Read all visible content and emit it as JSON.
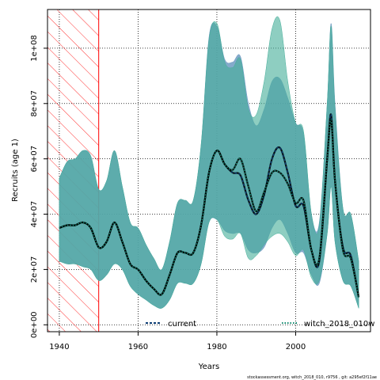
{
  "chart_data": {
    "type": "area",
    "xlabel": "Years",
    "ylabel": "Recruits (age 1)",
    "xlim": [
      1937,
      2019
    ],
    "ylim": [
      -2500000,
      114000000
    ],
    "xticks": [
      1940,
      1960,
      1980,
      2000
    ],
    "xtick_labels": [
      "1940",
      "1960",
      "1980",
      "2000"
    ],
    "yticks": [
      0,
      20000000,
      40000000,
      60000000,
      80000000,
      100000000
    ],
    "ytick_labels": [
      "0e+00",
      "2e+07",
      "4e+07",
      "6e+07",
      "8e+07",
      "1e+08"
    ],
    "grid": "dotted",
    "legend_position": "bottom",
    "colors": {
      "current": "#0b3c73",
      "compare": "#0e8a6e",
      "current_band": "#6f9bc2",
      "compare_band": "#42ad98",
      "overlap": "#6fb2b6",
      "forecast_hatch": "#ff0000"
    },
    "forecast_region": [
      1937,
      1950
    ],
    "series": [
      {
        "name": "current",
        "style": "dashed",
        "x": [
          1940,
          1942,
          1944,
          1946,
          1948,
          1950,
          1952,
          1954,
          1956,
          1958,
          1960,
          1962,
          1964,
          1966,
          1968,
          1970,
          1972,
          1974,
          1976,
          1978,
          1980,
          1982,
          1984,
          1986,
          1988,
          1990,
          1992,
          1994,
          1996,
          1998,
          2000,
          2002,
          2004,
          2006,
          2008,
          2009,
          2010,
          2012,
          2014,
          2016
        ],
        "values": [
          35000000,
          36000000,
          36000000,
          37000000,
          35000000,
          28000000,
          30000000,
          37000000,
          30000000,
          22000000,
          20000000,
          16000000,
          13000000,
          11000000,
          18000000,
          26000000,
          26000000,
          26000000,
          36000000,
          55000000,
          63000000,
          58000000,
          55000000,
          54000000,
          45000000,
          40000000,
          47000000,
          60000000,
          64000000,
          55000000,
          43000000,
          43000000,
          27000000,
          23000000,
          60000000,
          76000000,
          52000000,
          28000000,
          25000000,
          10000000
        ],
        "lower": [
          23000000,
          22000000,
          22000000,
          21000000,
          20000000,
          16000000,
          18000000,
          22000000,
          20000000,
          14000000,
          11000000,
          9000000,
          7000000,
          6000000,
          9000000,
          15000000,
          15000000,
          15000000,
          22000000,
          37000000,
          38000000,
          34000000,
          33000000,
          33000000,
          27000000,
          26000000,
          28000000,
          35000000,
          38000000,
          33000000,
          26000000,
          26000000,
          18000000,
          15000000,
          33000000,
          50000000,
          30000000,
          16000000,
          14000000,
          6000000
        ],
        "upper": [
          53000000,
          59000000,
          60000000,
          63000000,
          61000000,
          49000000,
          52000000,
          63000000,
          50000000,
          37000000,
          35000000,
          29000000,
          24000000,
          20000000,
          30000000,
          44000000,
          45000000,
          45000000,
          65000000,
          104000000,
          108000000,
          96000000,
          95000000,
          97000000,
          80000000,
          72000000,
          78000000,
          88000000,
          89000000,
          82000000,
          73000000,
          69000000,
          40000000,
          37000000,
          80000000,
          109000000,
          80000000,
          42000000,
          40000000,
          23000000
        ]
      },
      {
        "name": "witch_2018_010w",
        "style": "dotted",
        "x": [
          1940,
          1942,
          1944,
          1946,
          1948,
          1950,
          1952,
          1954,
          1956,
          1958,
          1960,
          1962,
          1964,
          1966,
          1968,
          1970,
          1972,
          1974,
          1976,
          1978,
          1980,
          1982,
          1984,
          1986,
          1988,
          1990,
          1992,
          1994,
          1996,
          1998,
          2000,
          2002,
          2004,
          2006,
          2008,
          2009,
          2010,
          2012,
          2014,
          2016
        ],
        "values": [
          35000000,
          36000000,
          36000000,
          37000000,
          35000000,
          28000000,
          30000000,
          37000000,
          30000000,
          22000000,
          20000000,
          16000000,
          13000000,
          11000000,
          18000000,
          26000000,
          26000000,
          26000000,
          36000000,
          55000000,
          63000000,
          58000000,
          56000000,
          60000000,
          50000000,
          41000000,
          48000000,
          55000000,
          55000000,
          51000000,
          44000000,
          45000000,
          27000000,
          24000000,
          60000000,
          74000000,
          52000000,
          27000000,
          24000000,
          10000000
        ],
        "lower": [
          23000000,
          22000000,
          22000000,
          21000000,
          20000000,
          16000000,
          18000000,
          22000000,
          20000000,
          14000000,
          11000000,
          9000000,
          7000000,
          6000000,
          9000000,
          15000000,
          15000000,
          15000000,
          22000000,
          37000000,
          38000000,
          32000000,
          31000000,
          33000000,
          24000000,
          25000000,
          29000000,
          32000000,
          33000000,
          30000000,
          25000000,
          27000000,
          17000000,
          16000000,
          33000000,
          50000000,
          30000000,
          16000000,
          14000000,
          6000000
        ],
        "upper": [
          53000000,
          59000000,
          60000000,
          63000000,
          61000000,
          49000000,
          52000000,
          63000000,
          50000000,
          37000000,
          35000000,
          29000000,
          24000000,
          20000000,
          30000000,
          44000000,
          45000000,
          45000000,
          65000000,
          103000000,
          109000000,
          95000000,
          93000000,
          96000000,
          78000000,
          76000000,
          88000000,
          107000000,
          110000000,
          88000000,
          73000000,
          70000000,
          40000000,
          36000000,
          80000000,
          108000000,
          78000000,
          42000000,
          40000000,
          23000000
        ]
      }
    ],
    "footnote": "stockassessment.org, witch_2018_010, r9756 , git: a295ef2f11ae"
  }
}
